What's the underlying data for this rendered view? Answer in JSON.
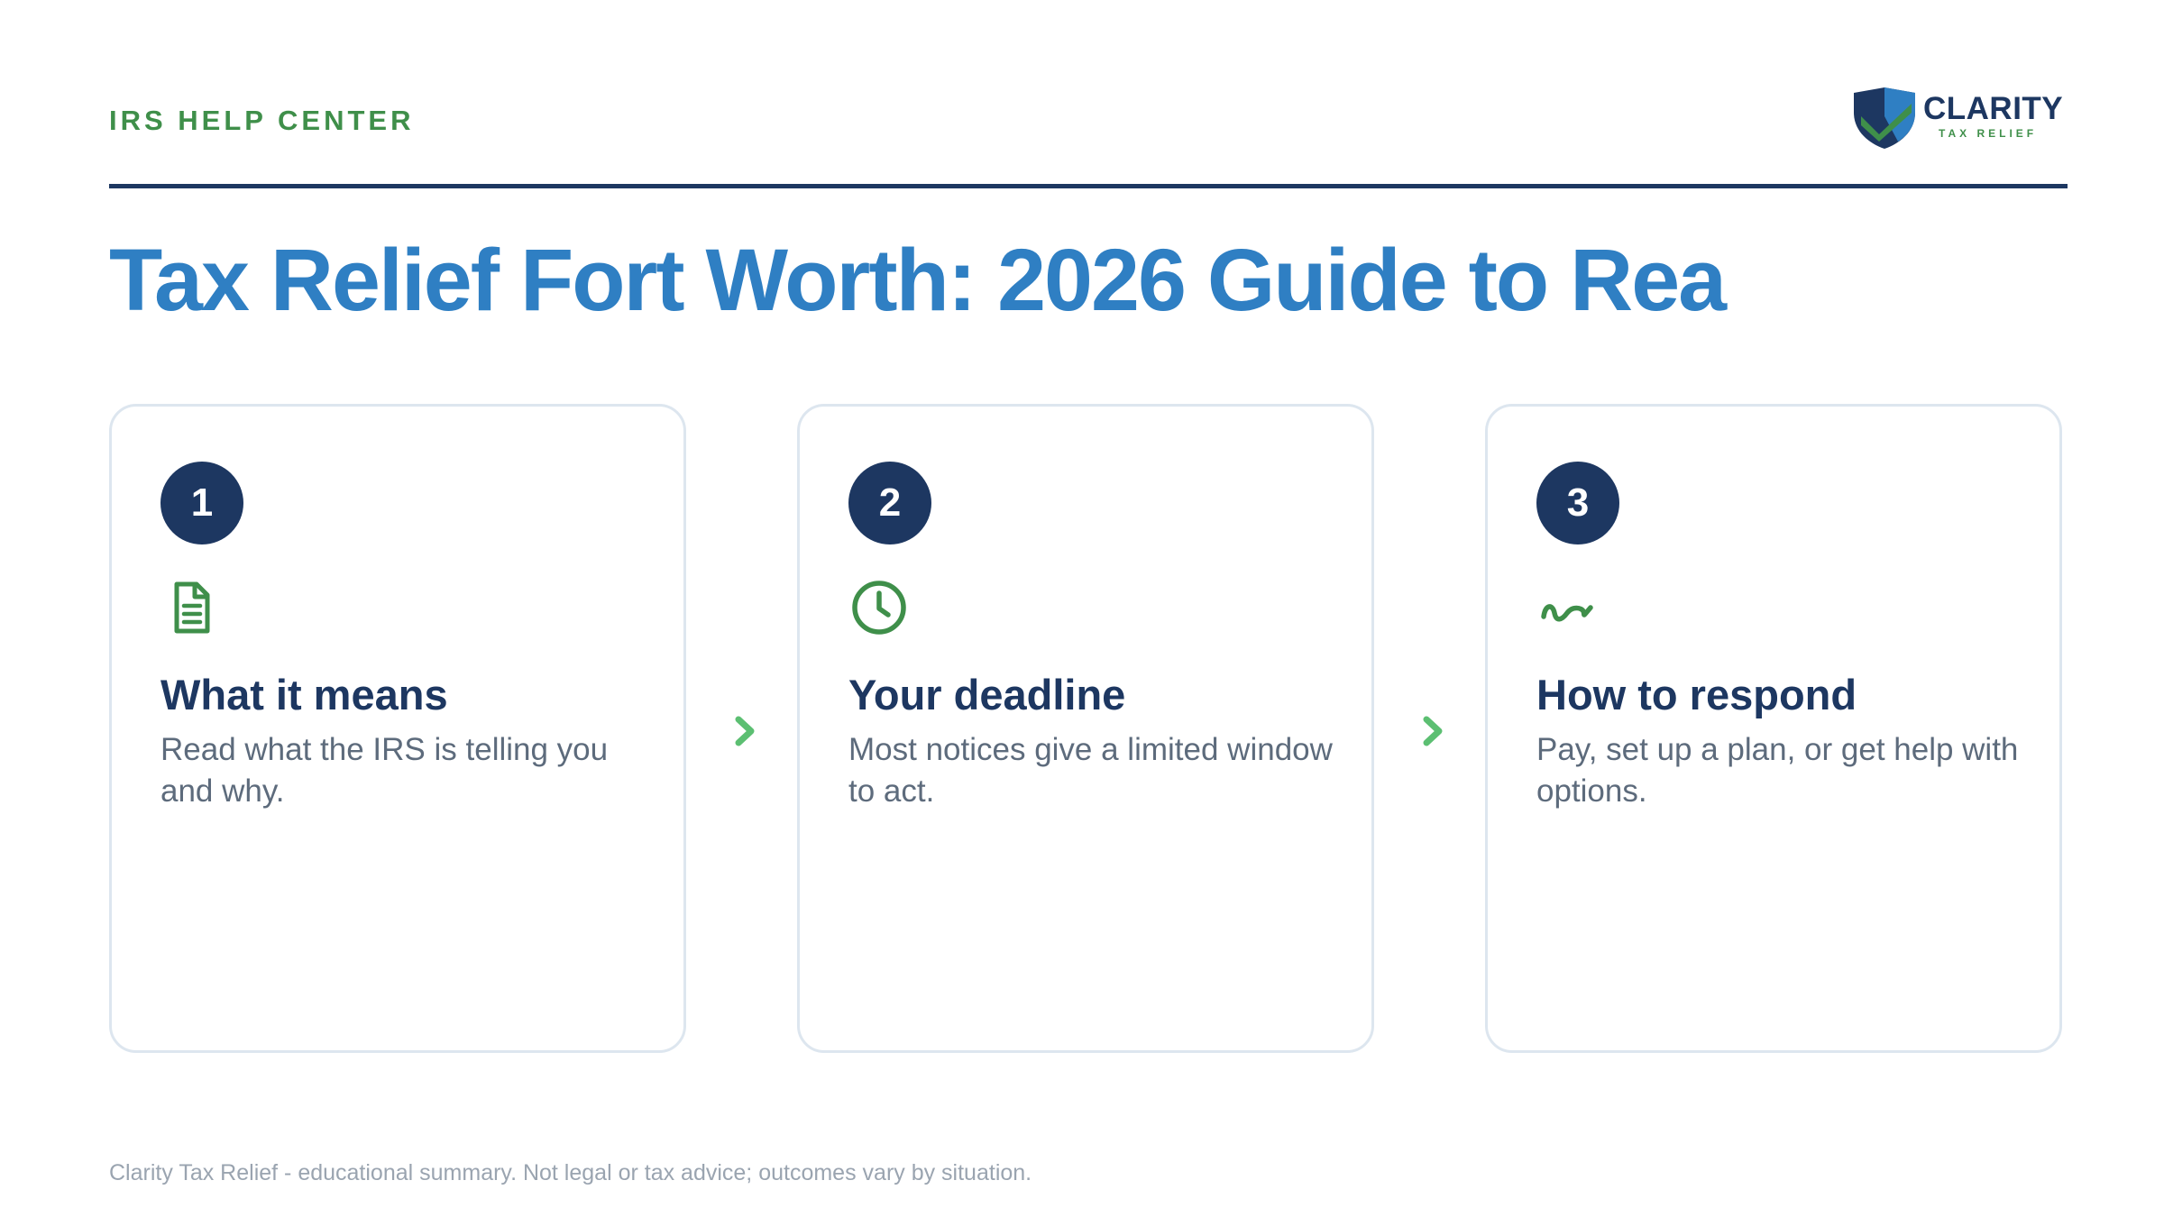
{
  "header": {
    "eyebrow": "IRS HELP CENTER",
    "logo_name": "CLARITY",
    "logo_tagline": "TAX RELIEF"
  },
  "title": "Tax Relief Fort Worth: 2026 Guide to Rea",
  "steps": [
    {
      "number": "1",
      "icon": "document-icon",
      "heading": "What it means",
      "body": "Read what the IRS is telling you and why."
    },
    {
      "number": "2",
      "icon": "clock-icon",
      "heading": "Your deadline",
      "body": "Most notices give a limited window to act."
    },
    {
      "number": "3",
      "icon": "squiggle-icon",
      "heading": "How to respond",
      "body": "Pay, set up a plan, or get help with options."
    }
  ],
  "footer": "Clarity Tax Relief - educational summary. Not legal or tax advice; outcomes vary by situation.",
  "colors": {
    "navy": "#1d3761",
    "blue": "#2f7fc3",
    "green": "#3f8f4a",
    "arrow_green": "#5cbf72",
    "card_border": "#dde6ef"
  }
}
